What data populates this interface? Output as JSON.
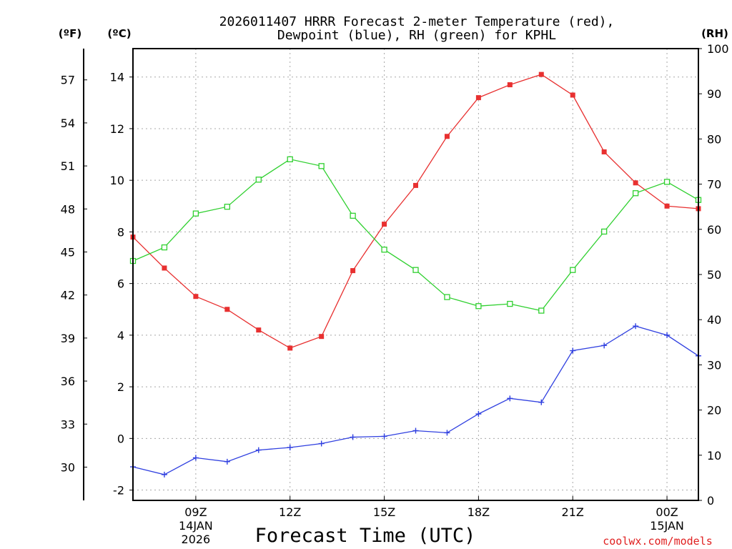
{
  "chart_data": {
    "type": "line",
    "title_line1": "2026011407 HRRR Forecast 2-meter Temperature (red),",
    "title_line2": "Dewpoint (blue), RH (green) for KPHL",
    "xlabel": "Forecast Time (UTC)",
    "units": {
      "fahrenheit": "(ºF)",
      "celsius": "(ºC)",
      "rh": "(RH)"
    },
    "x_hours": [
      7,
      8,
      9,
      10,
      11,
      12,
      13,
      14,
      15,
      16,
      17,
      18,
      19,
      20,
      21,
      22,
      23,
      24,
      25
    ],
    "xlim": [
      7,
      25
    ],
    "x_ticks": [
      {
        "hour": 9,
        "label": "09Z",
        "date1": "14JAN",
        "date2": "2026"
      },
      {
        "hour": 12,
        "label": "12Z"
      },
      {
        "hour": 15,
        "label": "15Z"
      },
      {
        "hour": 18,
        "label": "18Z"
      },
      {
        "hour": 21,
        "label": "21Z"
      },
      {
        "hour": 24,
        "label": "00Z",
        "date1": "15JAN"
      }
    ],
    "ylim_c": [
      -2.4,
      15.1
    ],
    "yticks_c": [
      "-2",
      "0",
      "2",
      "4",
      "6",
      "8",
      "10",
      "12",
      "14"
    ],
    "yticks_f": [
      "30",
      "33",
      "36",
      "39",
      "42",
      "45",
      "48",
      "51",
      "54",
      "57"
    ],
    "ylim_rh": [
      0,
      100
    ],
    "yticks_rh": [
      "0",
      "10",
      "20",
      "30",
      "40",
      "50",
      "60",
      "70",
      "80",
      "90",
      "100"
    ],
    "series": [
      {
        "name": "2-meter Temperature",
        "units": "C",
        "axis": "c",
        "color": "#e83030",
        "marker": "filled-square",
        "values": [
          7.8,
          6.6,
          5.5,
          5.0,
          4.2,
          3.5,
          3.95,
          6.5,
          8.3,
          9.8,
          11.7,
          13.2,
          13.7,
          14.1,
          13.3,
          11.1,
          9.9,
          9.0,
          8.9
        ]
      },
      {
        "name": "Dewpoint",
        "units": "C",
        "axis": "c",
        "color": "#3040e0",
        "marker": "plus",
        "values": [
          -1.1,
          -1.4,
          -0.75,
          -0.9,
          -0.45,
          -0.35,
          -0.2,
          0.05,
          0.08,
          0.3,
          0.22,
          0.95,
          1.55,
          1.4,
          3.4,
          3.6,
          4.35,
          4.0,
          3.2
        ]
      },
      {
        "name": "Relative Humidity",
        "units": "%",
        "axis": "rh",
        "color": "#30d030",
        "marker": "open-square",
        "values": [
          53,
          56,
          63.5,
          65,
          71,
          75.5,
          74,
          63,
          55.5,
          51,
          45,
          43,
          43.5,
          42,
          51,
          59.5,
          68,
          70.5,
          66.5
        ]
      }
    ]
  },
  "credit": "coolwx.com/models"
}
